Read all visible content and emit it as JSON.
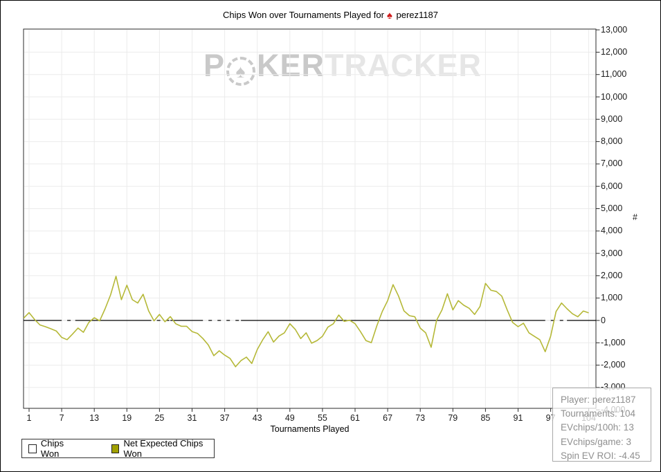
{
  "title": {
    "prefix": "Chips Won over Tournaments Played for",
    "spade_icon": "♠",
    "player": "perez1187"
  },
  "watermark": {
    "p": "P",
    "chip_icon": "♠",
    "ker": "KER",
    "tracker": "TRACKER"
  },
  "chart_data": {
    "type": "line",
    "title": "Chips Won over Tournaments Played for perez1187",
    "xlabel": "Tournaments Played",
    "ylabel": "#",
    "xlim": [
      0,
      105
    ],
    "ylim": [
      -4000,
      13000
    ],
    "grid": true,
    "legend_position": "bottom-left",
    "x_ticks": [
      1,
      7,
      13,
      19,
      25,
      31,
      37,
      43,
      49,
      55,
      61,
      67,
      73,
      79,
      85,
      91,
      97,
      104
    ],
    "y_ticks": [
      -4000,
      -3000,
      -2000,
      -1000,
      0,
      1000,
      2000,
      3000,
      4000,
      5000,
      6000,
      7000,
      8000,
      9000,
      10000,
      11000,
      12000,
      13000
    ],
    "series": [
      {
        "name": "Chips Won",
        "color": "#ffffff",
        "note": "white line on white background; visible only as white dashes where it runs along the black zero axis",
        "visible_zero_ranges_tournaments": [
          [
            7,
            9.5
          ],
          [
            23.5,
            27
          ],
          [
            33,
            40
          ],
          [
            96,
            100
          ]
        ]
      },
      {
        "name": "Net Expected Chips Won",
        "color": "#b5b837",
        "x_start": 0,
        "x_step": 1,
        "values": [
          100,
          350,
          50,
          -200,
          -280,
          -370,
          -470,
          -760,
          -860,
          -610,
          -340,
          -530,
          -90,
          120,
          -20,
          525,
          1145,
          1975,
          930,
          1575,
          930,
          780,
          1170,
          430,
          -20,
          270,
          -60,
          170,
          -150,
          -260,
          -260,
          -500,
          -580,
          -810,
          -1100,
          -1575,
          -1360,
          -1550,
          -1700,
          -2070,
          -1800,
          -1640,
          -1925,
          -1300,
          -870,
          -505,
          -965,
          -700,
          -555,
          -145,
          -400,
          -810,
          -555,
          -1020,
          -900,
          -710,
          -300,
          -150,
          240,
          -40,
          10,
          -145,
          -505,
          -900,
          -995,
          -245,
          400,
          890,
          1600,
          1090,
          430,
          215,
          165,
          -345,
          -555,
          -1200,
          10,
          470,
          1195,
          470,
          885,
          680,
          545,
          270,
          625,
          1655,
          1350,
          1295,
          1090,
          470,
          -90,
          -280,
          -125,
          -555,
          -710,
          -865,
          -1400,
          -700,
          400,
          780,
          525,
          300,
          165,
          420,
          340
        ]
      }
    ]
  },
  "legend": {
    "items": [
      {
        "label": "Chips Won",
        "swatch_color": "#ffffff"
      },
      {
        "label": "Net Expected Chips Won",
        "swatch_color": "#a0a000"
      }
    ]
  },
  "tooltip": {
    "lines": [
      "Player: perez1187",
      "Tournaments: 104",
      "EVchips/100h: 13",
      "EVchips/game: 3",
      "Spin EV ROI: -4.45"
    ]
  },
  "colors": {
    "ev_line": "#b5b837",
    "grid": "#ebebeb",
    "axis": "#2a2a2a",
    "zero_line": "#000000",
    "tooltip_text": "#8f8f8f",
    "title_spade": "#cf1b1b",
    "watermark_dark": "#c9c9c9",
    "watermark_light": "#e6e6e6"
  }
}
